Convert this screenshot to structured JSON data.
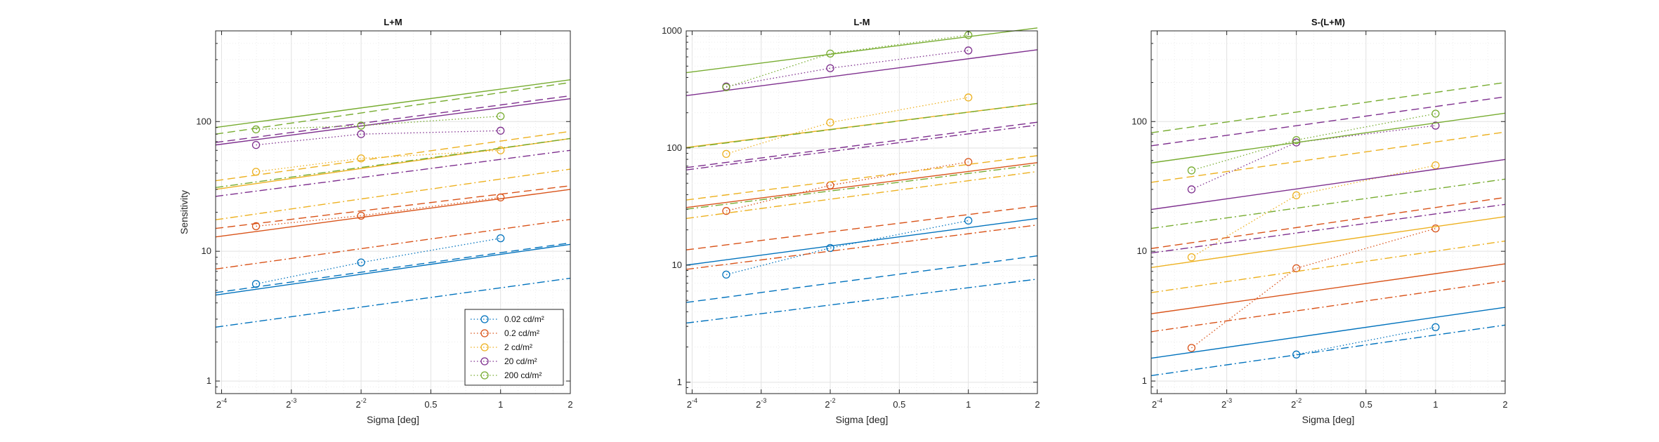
{
  "chart_data": [
    {
      "type": "line",
      "title": "L+M",
      "xlabel": "Sigma [deg]",
      "ylabel": "Sensitivity",
      "xscale": "log2",
      "yscale": "log10",
      "xlim": [
        0.0589,
        2
      ],
      "ylim": [
        0.8,
        500
      ],
      "xticks": [
        {
          "base": "2",
          "exp": "-4"
        },
        {
          "base": "2",
          "exp": "-3"
        },
        {
          "base": "2",
          "exp": "-2"
        },
        {
          "text": "0.5"
        },
        {
          "text": "1"
        },
        {
          "text": "2"
        }
      ],
      "yticks": [
        "1",
        "10",
        "100"
      ],
      "grid": true,
      "legend_position": "bottom-right",
      "series": [
        {
          "name": "0.02 cd/m²",
          "color": "#0072BD",
          "x": [
            0.088,
            0.25,
            1
          ],
          "y": [
            5.6,
            8.2,
            12.6
          ],
          "models": {
            "solid": [
              4.6,
              11.3
            ],
            "dashed": [
              4.8,
              11.6
            ],
            "dashdot": [
              2.6,
              6.2
            ]
          }
        },
        {
          "name": "0.2 cd/m²",
          "color": "#D95319",
          "x": [
            0.088,
            0.25,
            1
          ],
          "y": [
            15.6,
            18.8,
            26
          ],
          "models": {
            "solid": [
              12.9,
              30
            ],
            "dashed": [
              15,
              32
            ],
            "dashdot": [
              7.3,
              17.6
            ]
          }
        },
        {
          "name": "2 cd/m²",
          "color": "#EDB120",
          "x": [
            0.088,
            0.25,
            1
          ],
          "y": [
            41,
            52,
            60
          ],
          "models": {
            "solid": [
              30,
              74
            ],
            "dashed": [
              35,
              84
            ],
            "dashdot": [
              17.5,
              43
            ]
          }
        },
        {
          "name": "20 cd/m²",
          "color": "#7E2F8E",
          "x": [
            0.088,
            0.25,
            1
          ],
          "y": [
            66,
            80,
            85
          ],
          "models": {
            "solid": [
              66,
              150
            ],
            "dashed": [
              69,
              158
            ],
            "dashdot": [
              26.5,
              60
            ]
          }
        },
        {
          "name": "200 cd/m²",
          "color": "#77AC30",
          "x": [
            0.088,
            0.25,
            1
          ],
          "y": [
            87,
            93,
            110
          ],
          "models": {
            "solid": [
              90,
              210
            ],
            "dashed": [
              80,
              200
            ],
            "dashdot": [
              31,
              74
            ]
          }
        }
      ]
    },
    {
      "type": "line",
      "title": "L-M",
      "xlabel": "Sigma [deg]",
      "ylabel": "",
      "xscale": "log2",
      "yscale": "log10",
      "xlim": [
        0.0589,
        2
      ],
      "ylim": [
        0.8,
        1000
      ],
      "xticks": [
        {
          "base": "2",
          "exp": "-4"
        },
        {
          "base": "2",
          "exp": "-3"
        },
        {
          "base": "2",
          "exp": "-2"
        },
        {
          "text": "0.5"
        },
        {
          "text": "1"
        },
        {
          "text": "2"
        }
      ],
      "yticks": [
        "1",
        "10",
        "100",
        "1000"
      ],
      "grid": true,
      "series": [
        {
          "name": "0.02 cd/m²",
          "color": "#0072BD",
          "x": [
            0.088,
            0.25,
            1
          ],
          "y": [
            8.3,
            14,
            24
          ],
          "models": {
            "solid": [
              10,
              25
            ],
            "dashed": [
              4.8,
              12
            ],
            "dashdot": [
              3.2,
              7.6
            ]
          }
        },
        {
          "name": "0.2 cd/m²",
          "color": "#D95319",
          "x": [
            0.088,
            0.25,
            1
          ],
          "y": [
            29,
            48,
            76
          ],
          "models": {
            "solid": [
              31,
              75
            ],
            "dashed": [
              13.5,
              32
            ],
            "dashdot": [
              9.2,
              22
            ]
          }
        },
        {
          "name": "2 cd/m²",
          "color": "#EDB120",
          "x": [
            0.088,
            0.25,
            1
          ],
          "y": [
            89,
            165,
            270
          ],
          "models": {
            "solid": [
              101,
              240
            ],
            "dashed": [
              36,
              86
            ],
            "dashdot": [
              25,
              63
            ]
          }
        },
        {
          "name": "20 cd/m²",
          "color": "#7E2F8E",
          "x": [
            0.088,
            0.25,
            1
          ],
          "y": [
            335,
            480,
            680
          ],
          "models": {
            "solid": [
              280,
              690
            ],
            "dashed": [
              68,
              166
            ],
            "dashdot": [
              65,
              157
            ]
          }
        },
        {
          "name": "200 cd/m²",
          "color": "#77AC30",
          "x": [
            0.088,
            0.25,
            1
          ],
          "y": [
            330,
            640,
            920
          ],
          "models": {
            "solid": [
              440,
              1060
            ],
            "dashed": [
              100,
              240
            ],
            "dashdot": [
              30,
              72
            ]
          }
        }
      ]
    },
    {
      "type": "line",
      "title": "S-(L+M)",
      "xlabel": "Sigma [deg]",
      "ylabel": "",
      "xscale": "log2",
      "yscale": "log10",
      "xlim": [
        0.0589,
        2
      ],
      "ylim": [
        0.8,
        500
      ],
      "xticks": [
        {
          "base": "2",
          "exp": "-4"
        },
        {
          "base": "2",
          "exp": "-3"
        },
        {
          "base": "2",
          "exp": "-2"
        },
        {
          "text": "0.5"
        },
        {
          "text": "1"
        },
        {
          "text": "2"
        }
      ],
      "yticks": [
        "1",
        "10",
        "100"
      ],
      "grid": true,
      "series": [
        {
          "name": "0.02 cd/m²",
          "color": "#0072BD",
          "x": [
            0.25,
            1
          ],
          "y": [
            1.6,
            2.6
          ],
          "models": {
            "solid": [
              1.5,
              3.7
            ],
            "dashed": null,
            "dashdot": [
              1.1,
              2.7
            ]
          }
        },
        {
          "name": "0.2 cd/m²",
          "color": "#D95319",
          "x": [
            0.088,
            0.25,
            1
          ],
          "y": [
            1.8,
            7.4,
            15
          ],
          "models": {
            "solid": [
              3.3,
              8
            ],
            "dashed": [
              10.5,
              26
            ],
            "dashdot": [
              2.4,
              5.9
            ]
          }
        },
        {
          "name": "2 cd/m²",
          "color": "#EDB120",
          "x": [
            0.088,
            0.25,
            1
          ],
          "y": [
            9,
            27,
            46
          ],
          "models": {
            "solid": [
              7.5,
              18.5
            ],
            "dashed": [
              34,
              83
            ],
            "dashdot": [
              4.8,
              12
            ]
          }
        },
        {
          "name": "20 cd/m²",
          "color": "#7E2F8E",
          "x": [
            0.088,
            0.25,
            1
          ],
          "y": [
            30,
            69,
            93
          ],
          "models": {
            "solid": [
              21,
              51
            ],
            "dashed": [
              65,
              155
            ],
            "dashdot": [
              9.7,
              23
            ]
          }
        },
        {
          "name": "200 cd/m²",
          "color": "#77AC30",
          "x": [
            0.088,
            0.25,
            1
          ],
          "y": [
            42,
            72,
            115
          ],
          "models": {
            "solid": [
              48,
              116
            ],
            "dashed": [
              82,
              200
            ],
            "dashdot": [
              15,
              36
            ]
          }
        }
      ]
    }
  ]
}
